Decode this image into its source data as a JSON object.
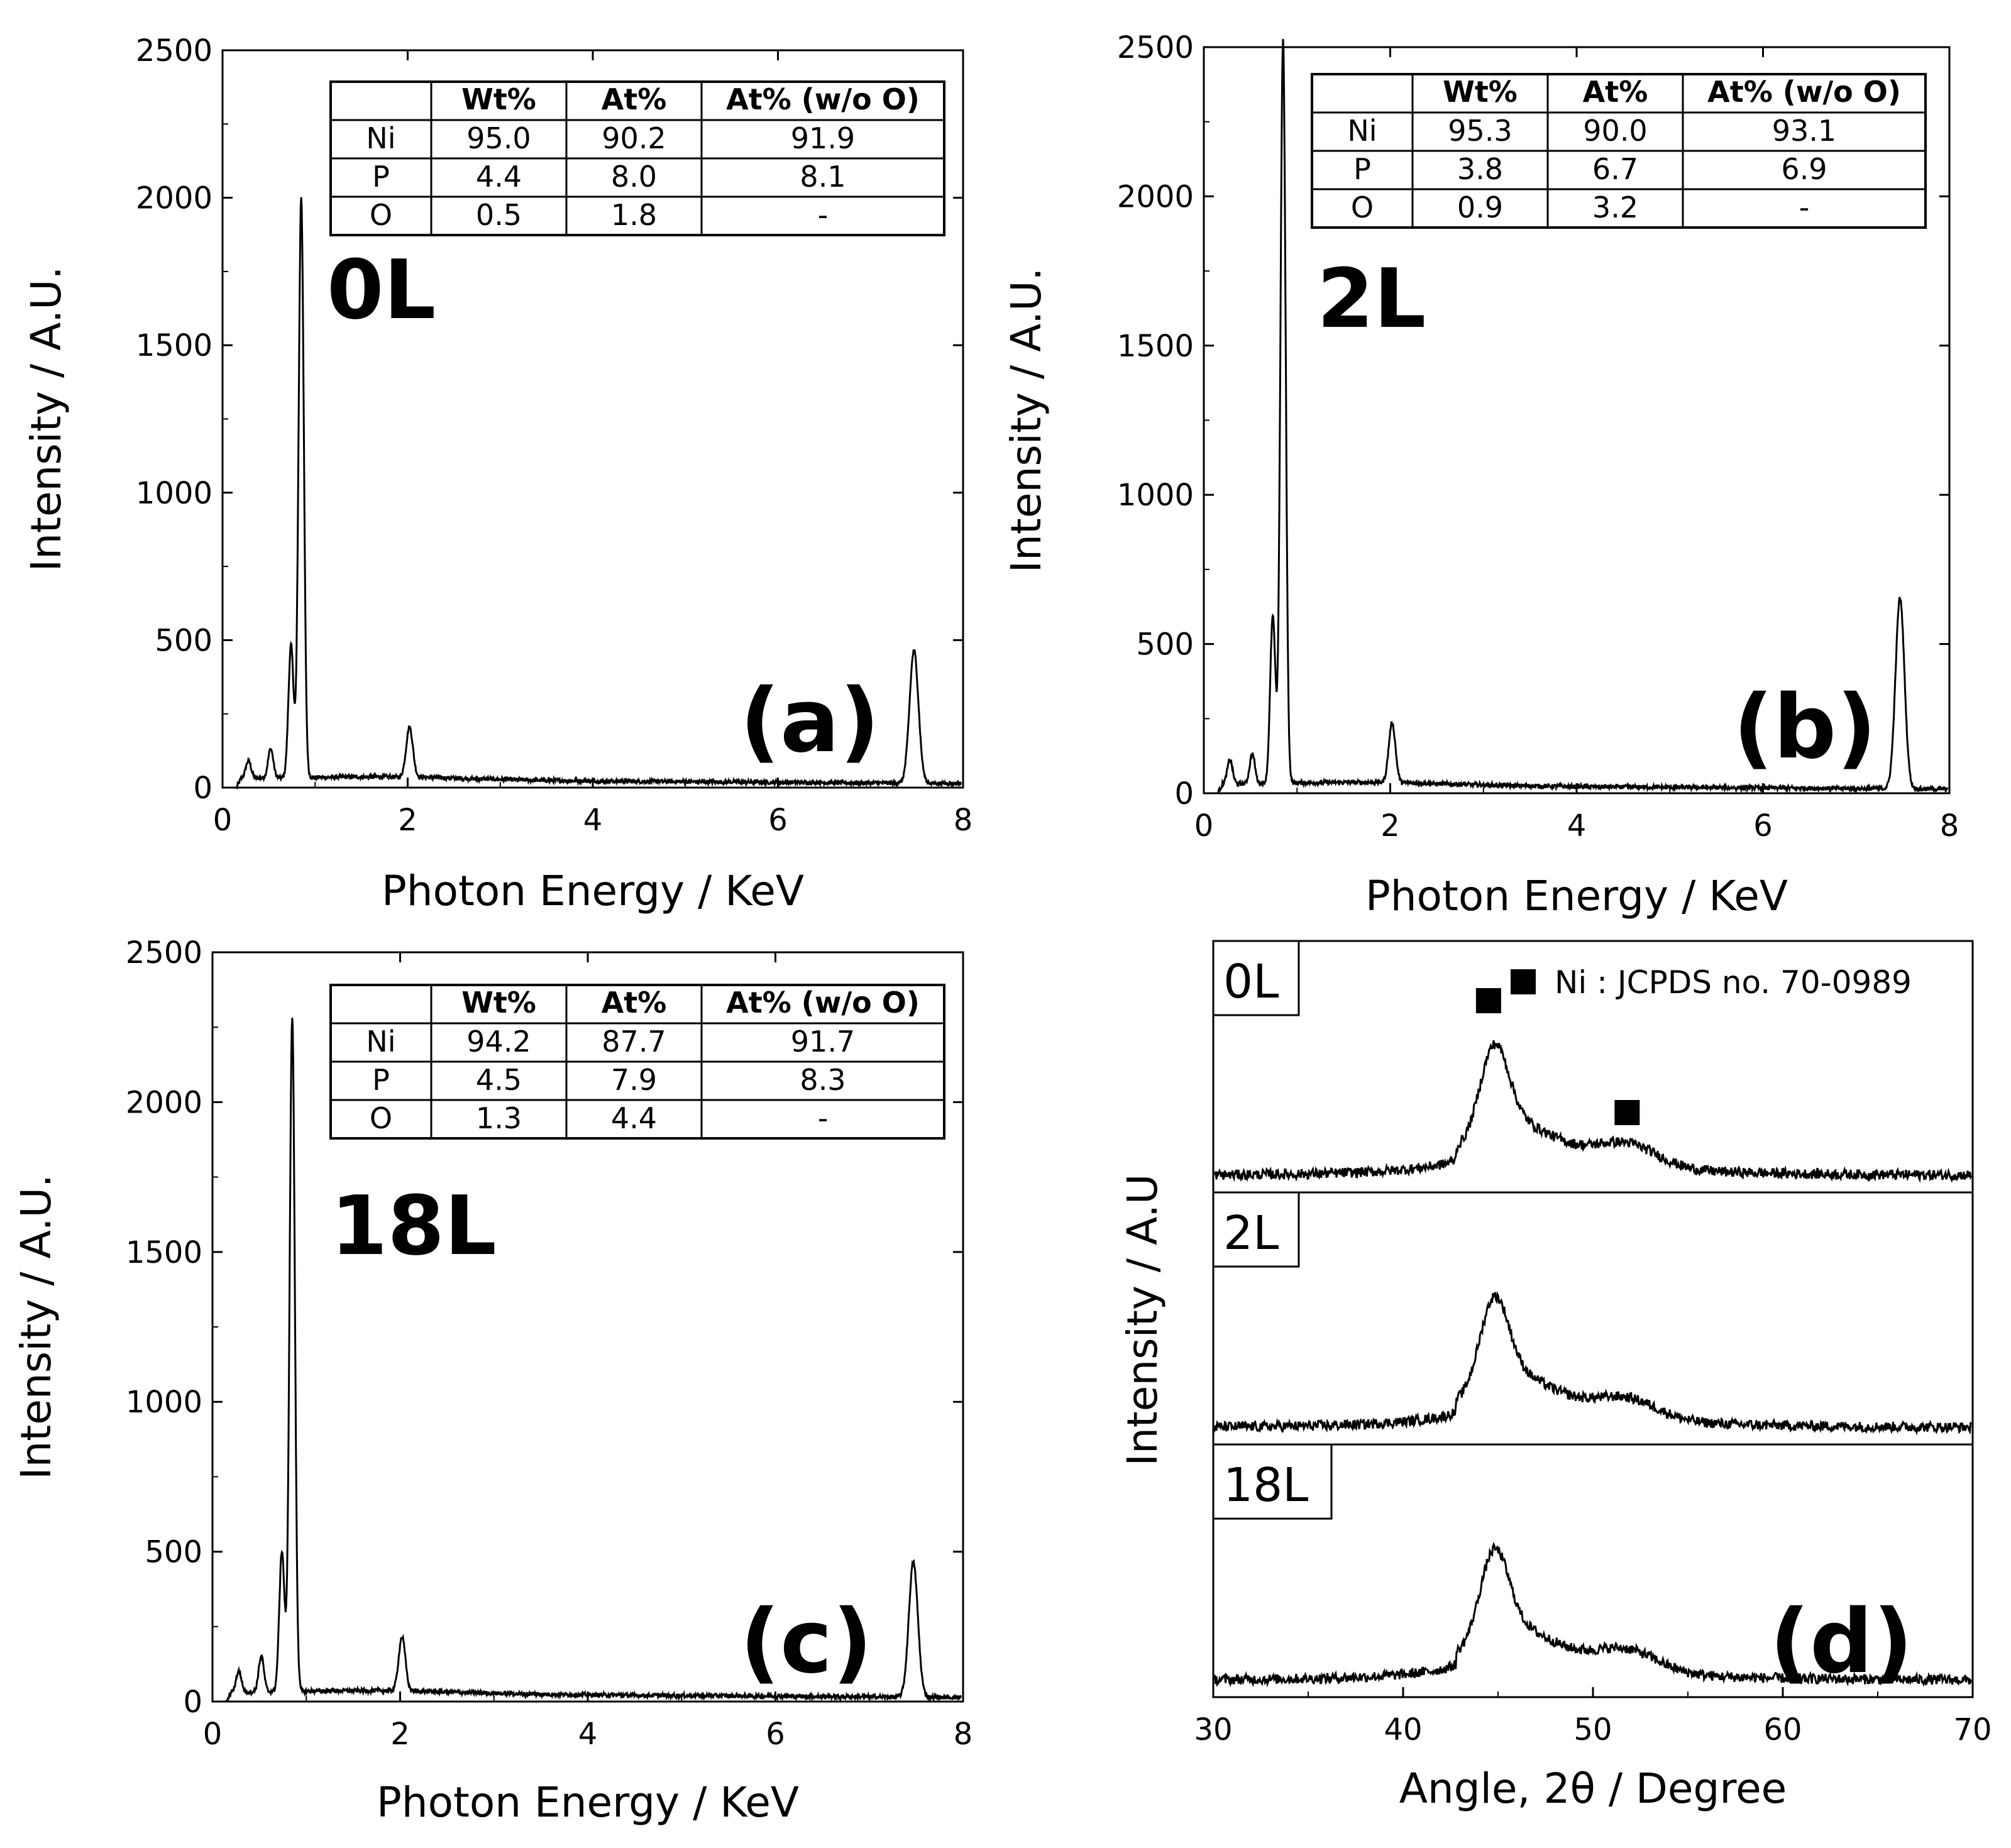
{
  "chart_data": [
    {
      "panel_id": "a",
      "type": "line",
      "panel_label": "(a)",
      "sample_label": "0L",
      "xlabel": "Photon Energy / KeV",
      "ylabel": "Intensity / A.U.",
      "xlim": [
        0,
        8
      ],
      "ylim": [
        0,
        2500
      ],
      "xticks": [
        "0",
        "2",
        "4",
        "6",
        "8"
      ],
      "yticks": [
        "0",
        "500",
        "1000",
        "1500",
        "2000",
        "2500"
      ],
      "peaks": [
        [
          0.28,
          60
        ],
        [
          0.52,
          100
        ],
        [
          0.74,
          450
        ],
        [
          0.85,
          1970
        ],
        [
          2.02,
          170
        ],
        [
          7.47,
          450
        ]
      ],
      "table": {
        "columns": [
          "",
          "Wt%",
          "At%",
          "At% (w/o O)"
        ],
        "rows": [
          [
            "Ni",
            "95.0",
            "90.2",
            "91.9"
          ],
          [
            "P",
            "4.4",
            "8.0",
            "8.1"
          ],
          [
            "O",
            "0.5",
            "1.8",
            "-"
          ]
        ]
      }
    },
    {
      "panel_id": "b",
      "type": "line",
      "panel_label": "(b)",
      "sample_label": "2L",
      "xlabel": "Photon Energy / KeV",
      "ylabel": "Intensity / A.U.",
      "xlim": [
        0,
        8
      ],
      "ylim": [
        0,
        2500
      ],
      "xticks": [
        "0",
        "2",
        "4",
        "6",
        "8"
      ],
      "yticks": [
        "0",
        "500",
        "1000",
        "1500",
        "2000",
        "2500"
      ],
      "peaks": [
        [
          0.28,
          80
        ],
        [
          0.52,
          100
        ],
        [
          0.74,
          560
        ],
        [
          0.85,
          2490
        ],
        [
          2.02,
          200
        ],
        [
          7.47,
          640
        ]
      ],
      "table": {
        "columns": [
          "",
          "Wt%",
          "At%",
          "At% (w/o O)"
        ],
        "rows": [
          [
            "Ni",
            "95.3",
            "90.0",
            "93.1"
          ],
          [
            "P",
            "3.8",
            "6.7",
            "6.9"
          ],
          [
            "O",
            "0.9",
            "3.2",
            "-"
          ]
        ]
      }
    },
    {
      "panel_id": "c",
      "type": "line",
      "panel_label": "(c)",
      "sample_label": "18L",
      "xlabel": "Photon Energy / KeV",
      "ylabel": "Intensity / A.U.",
      "xlim": [
        0,
        8
      ],
      "ylim": [
        0,
        2500
      ],
      "xticks": [
        "0",
        "2",
        "4",
        "6",
        "8"
      ],
      "yticks": [
        "0",
        "500",
        "1000",
        "1500",
        "2000",
        "2500"
      ],
      "peaks": [
        [
          0.28,
          70
        ],
        [
          0.52,
          120
        ],
        [
          0.74,
          470
        ],
        [
          0.85,
          2250
        ],
        [
          2.02,
          180
        ],
        [
          7.47,
          450
        ]
      ],
      "table": {
        "columns": [
          "",
          "Wt%",
          "At%",
          "At% (w/o O)"
        ],
        "rows": [
          [
            "Ni",
            "94.2",
            "87.7",
            "91.7"
          ],
          [
            "P",
            "4.5",
            "7.9",
            "8.3"
          ],
          [
            "O",
            "1.3",
            "4.4",
            "-"
          ]
        ]
      }
    },
    {
      "panel_id": "d",
      "type": "line",
      "panel_label": "(d)",
      "xlabel": "Angle, 2θ / Degree",
      "ylabel": "Intensity / A.U",
      "xlim": [
        30,
        70
      ],
      "xticks": [
        "30",
        "40",
        "50",
        "60",
        "70"
      ],
      "legend": "Ni : JCPDS no. 70-0989",
      "markers_2theta": [
        44.5,
        51.8
      ],
      "series": [
        {
          "name": "0L",
          "peak_2theta": 44.8,
          "peak_rel_intensity": 1.0,
          "shoulder_2theta": 51.8,
          "shoulder_rel_intensity": 0.17
        },
        {
          "name": "2L",
          "peak_2theta": 44.8,
          "peak_rel_intensity": 1.0,
          "shoulder_2theta": 51.8,
          "shoulder_rel_intensity": 0.15
        },
        {
          "name": "18L",
          "peak_2theta": 44.8,
          "peak_rel_intensity": 1.0,
          "shoulder_2theta": 51.8,
          "shoulder_rel_intensity": 0.16
        }
      ]
    }
  ]
}
